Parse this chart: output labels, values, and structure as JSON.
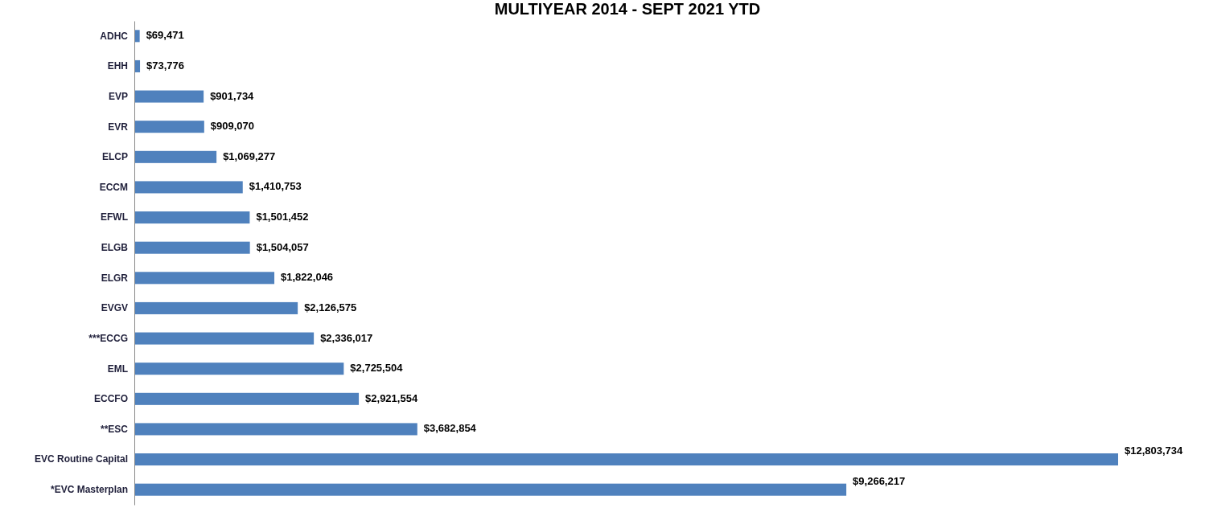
{
  "chart_data": {
    "type": "bar",
    "orientation": "horizontal",
    "title": "MULTIYEAR 2014 - SEPT 2021 YTD",
    "categories": [
      "ADHC",
      "EHH",
      "EVP",
      "EVR",
      "ELCP",
      "ECCM",
      "EFWL",
      "ELGB",
      "ELGR",
      "EVGV",
      "***ECCG",
      "EML",
      "ECCFO",
      "**ESC",
      "EVC Routine Capital",
      "*EVC Masterplan"
    ],
    "values": [
      69471,
      73776,
      901734,
      909070,
      1069277,
      1410753,
      1501452,
      1504057,
      1822046,
      2126575,
      2336017,
      2725504,
      2921554,
      3682854,
      12803734,
      9266217
    ],
    "value_labels": [
      "$69,471",
      "$73,776",
      "$901,734",
      "$909,070",
      "$1,069,277",
      "$1,410,753",
      "$1,501,452",
      "$1,504,057",
      "$1,822,046",
      "$2,126,575",
      "$2,336,017",
      "$2,725,504",
      "$2,921,554",
      "$3,682,854",
      "$12,803,734",
      "$9,266,217"
    ],
    "color": "#4f81bd",
    "tick_labels": "y"
  }
}
